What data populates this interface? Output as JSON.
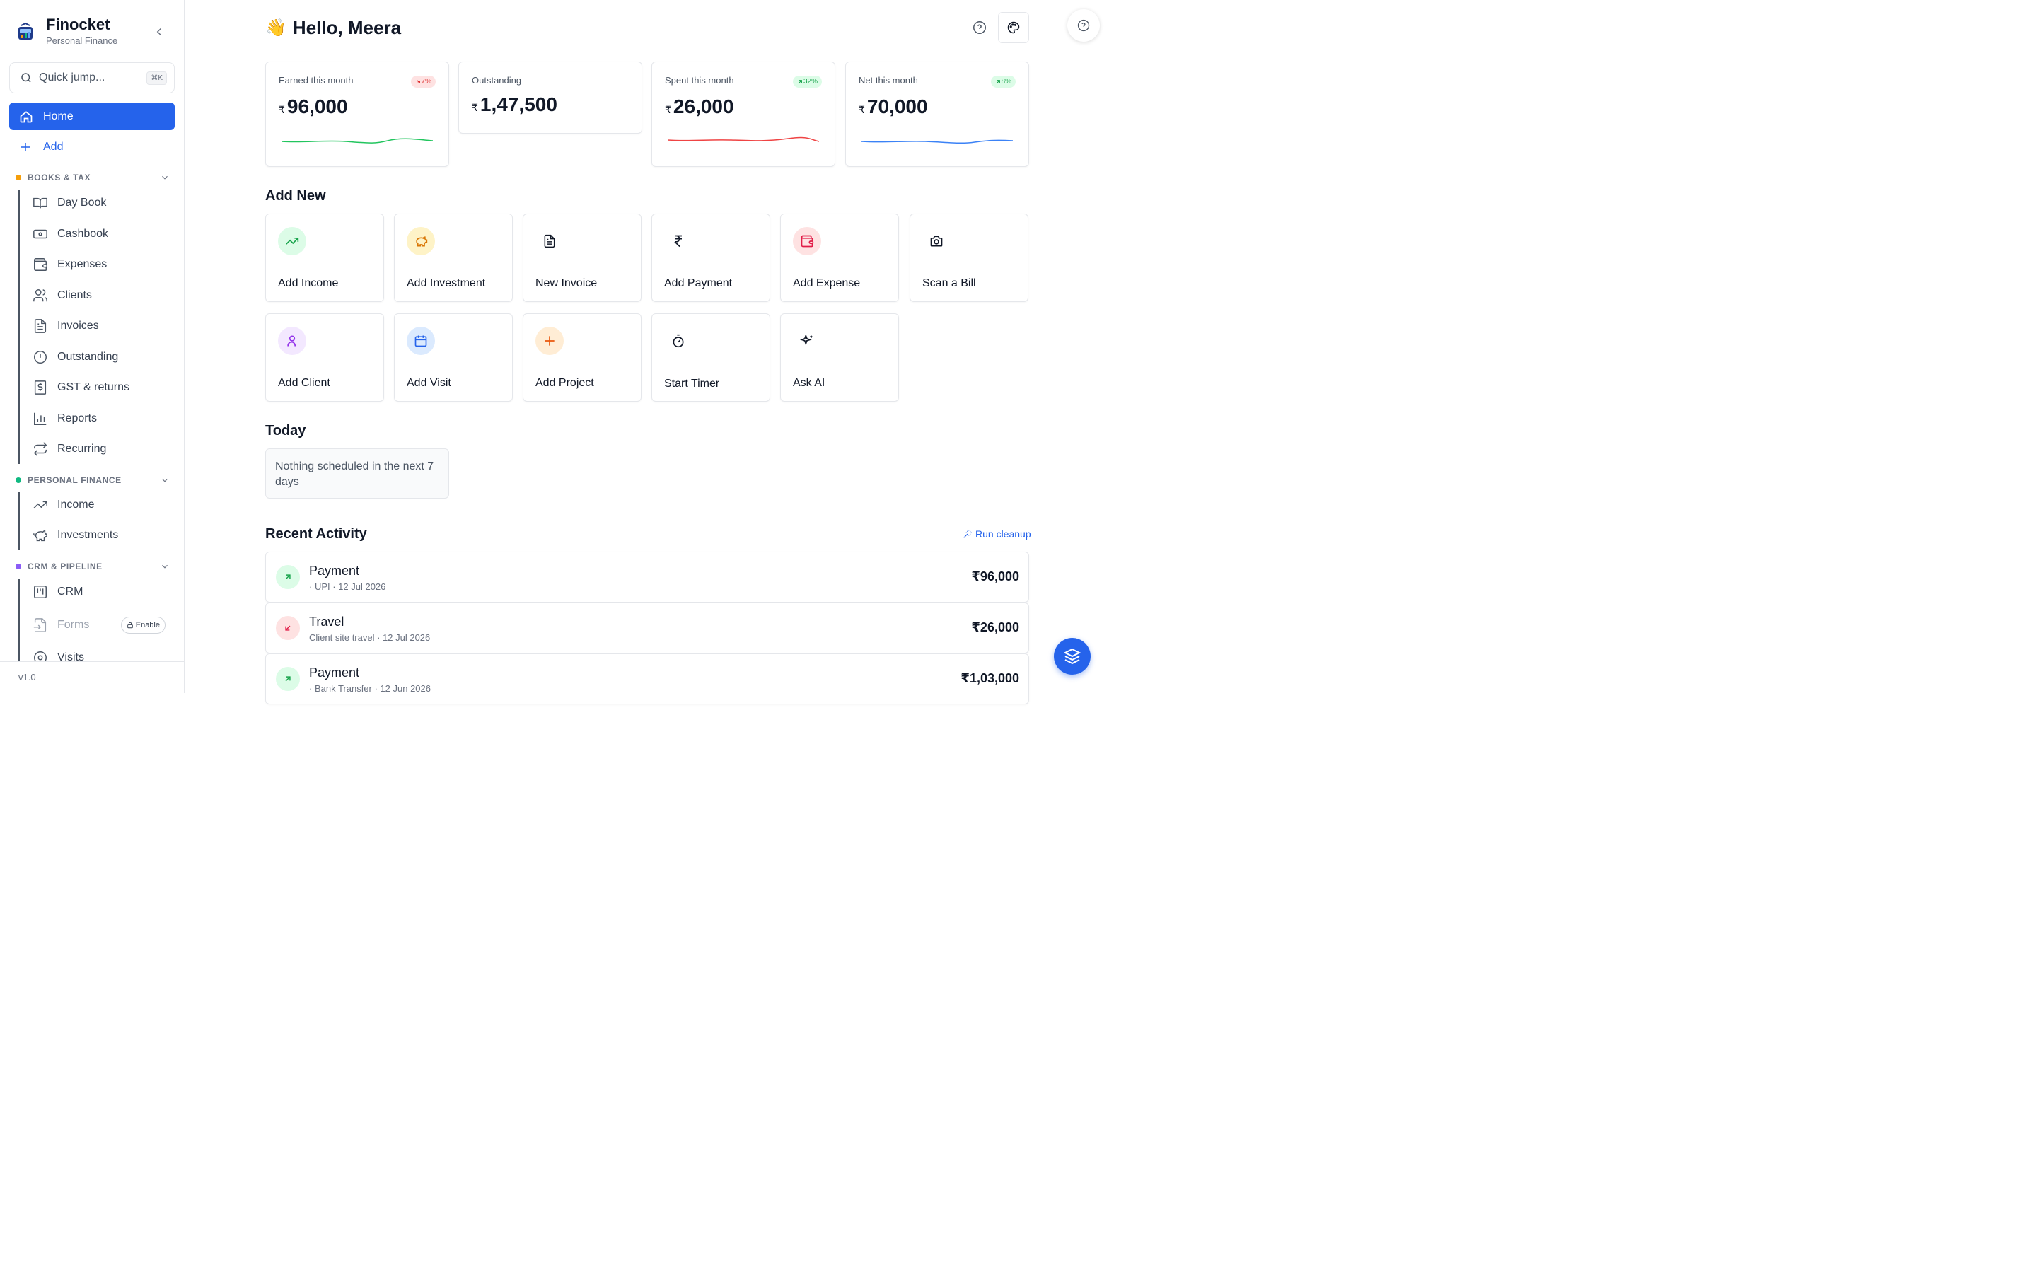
{
  "brand": {
    "name": "Finocket",
    "subtitle": "Personal Finance"
  },
  "search": {
    "placeholder": "Quick jump...",
    "shortcut": "⌘K"
  },
  "nav": {
    "home": "Home",
    "add": "Add",
    "sections": [
      {
        "label": "BOOKS & TAX",
        "color": "#f59e0b",
        "items": [
          "Day Book",
          "Cashbook",
          "Expenses",
          "Clients",
          "Invoices",
          "Outstanding",
          "GST & returns",
          "Reports",
          "Recurring"
        ]
      },
      {
        "label": "PERSONAL FINANCE",
        "color": "#10b981",
        "items": [
          "Income",
          "Investments"
        ]
      },
      {
        "label": "CRM & PIPELINE",
        "color": "#8b5cf6",
        "items": [
          "CRM",
          "Forms",
          "Visits"
        ],
        "enable_label": "Enable"
      }
    ],
    "version": "v1.0"
  },
  "greeting": {
    "emoji": "👋",
    "text": "Hello, Meera"
  },
  "stats": [
    {
      "label": "Earned this month",
      "currency": "₹",
      "value": "96,000",
      "badge": "7%",
      "trend": "down",
      "spark_color": "#22c55e"
    },
    {
      "label": "Outstanding",
      "currency": "₹",
      "value": "1,47,500"
    },
    {
      "label": "Spent this month",
      "currency": "₹",
      "value": "26,000",
      "badge": "32%",
      "trend": "up",
      "spark_color": "#ef4444"
    },
    {
      "label": "Net this month",
      "currency": "₹",
      "value": "70,000",
      "badge": "8%",
      "trend": "up",
      "spark_color": "#3b82f6"
    }
  ],
  "add_new": {
    "title": "Add New",
    "tiles": [
      {
        "label": "Add Income",
        "icon": "trending-up-icon"
      },
      {
        "label": "Add Investment",
        "icon": "piggy-bank-icon"
      },
      {
        "label": "New Invoice",
        "icon": "file-text-icon"
      },
      {
        "label": "Add Payment",
        "icon": "rupee-icon"
      },
      {
        "label": "Add Expense",
        "icon": "wallet-icon"
      },
      {
        "label": "Scan a Bill",
        "icon": "camera-icon"
      },
      {
        "label": "Add Client",
        "icon": "user-icon"
      },
      {
        "label": "Add Visit",
        "icon": "calendar-icon"
      },
      {
        "label": "Add Project",
        "icon": "plus-icon"
      },
      {
        "label": "Start Timer",
        "icon": "timer-icon"
      },
      {
        "label": "Ask AI",
        "icon": "sparkles-icon"
      }
    ]
  },
  "today": {
    "title": "Today",
    "empty": "Nothing scheduled in the next 7 days"
  },
  "recent": {
    "title": "Recent Activity",
    "cleanup": "Run cleanup",
    "items": [
      {
        "title": "Payment",
        "sub": "· UPI · 12 Jul 2026",
        "amount": "₹96,000",
        "direction": "in"
      },
      {
        "title": "Travel",
        "sub": "Client site travel · 12 Jul 2026",
        "amount": "₹26,000",
        "direction": "out"
      },
      {
        "title": "Payment",
        "sub": "· Bank Transfer · 12 Jun 2026",
        "amount": "₹1,03,000",
        "direction": "in"
      }
    ]
  }
}
